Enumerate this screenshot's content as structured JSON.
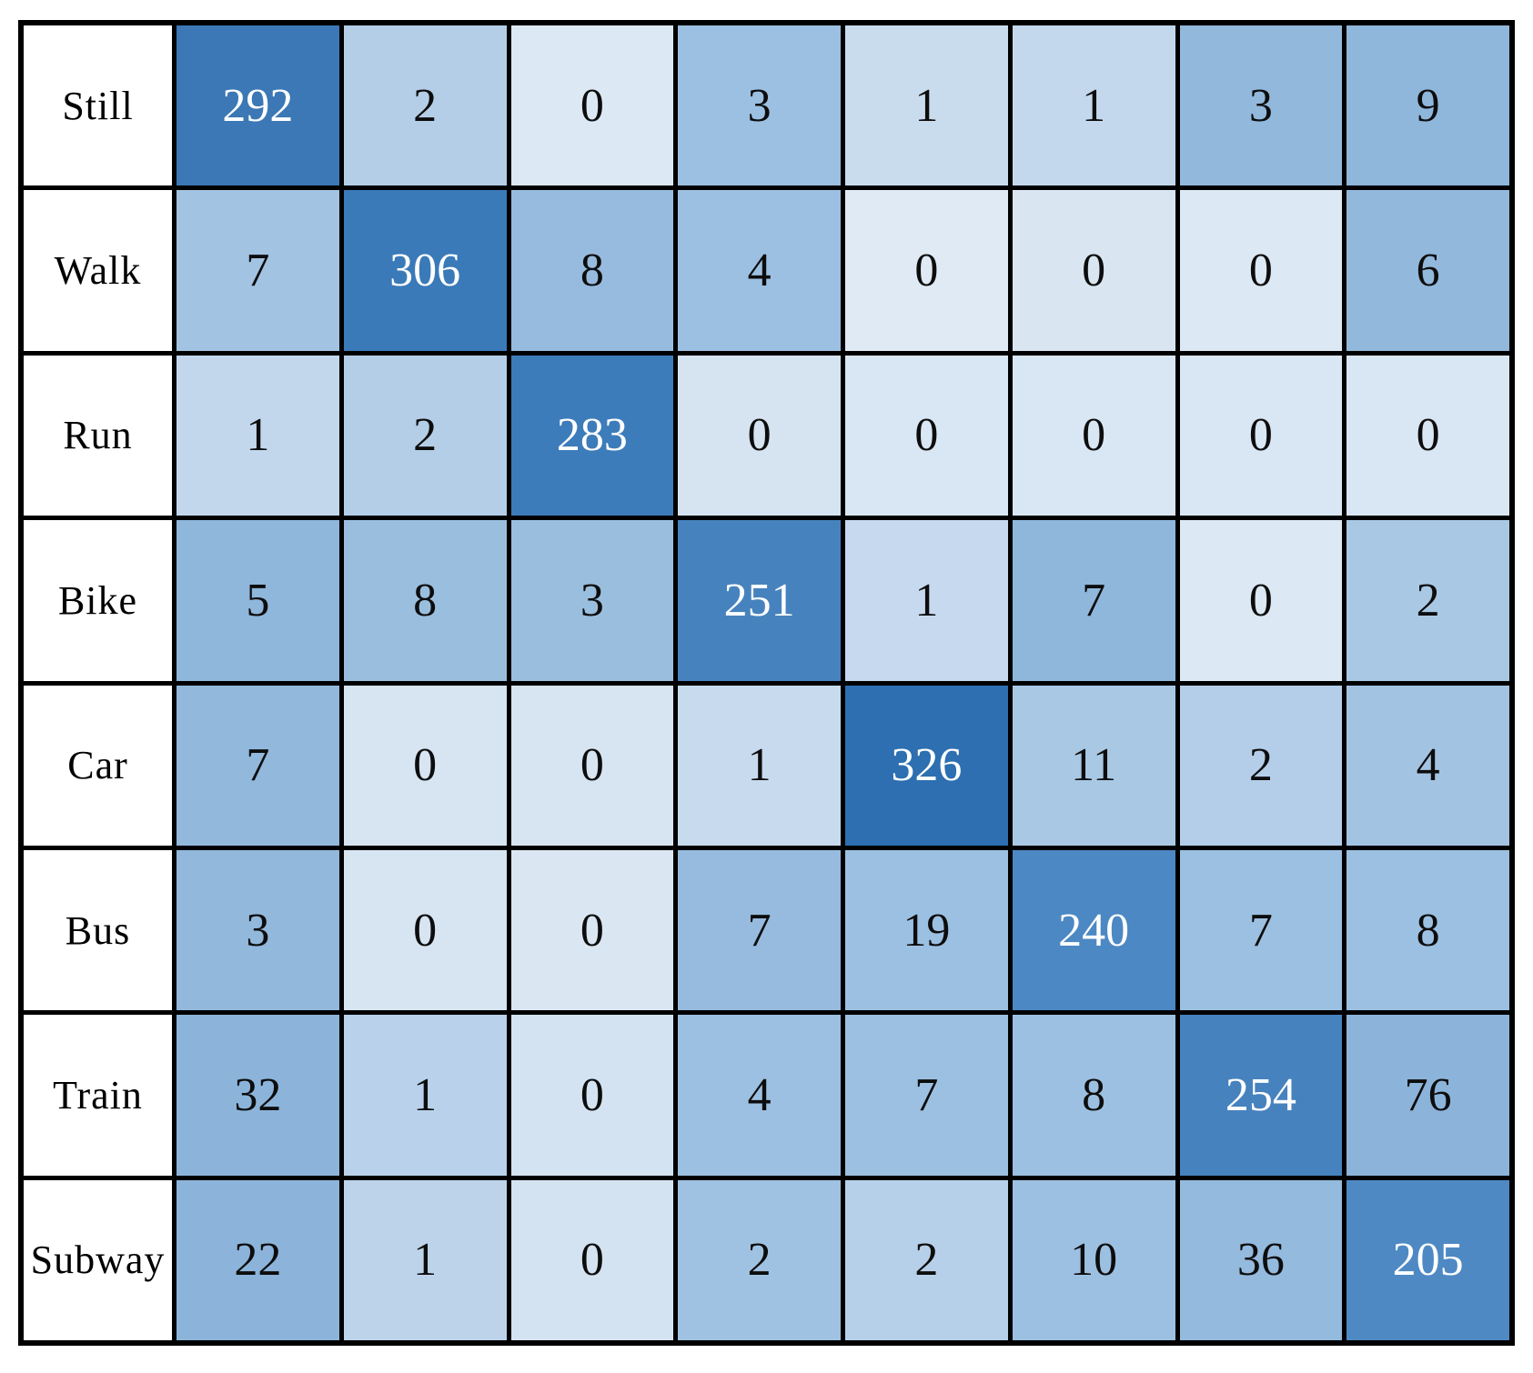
{
  "chart_data": {
    "type": "heatmap",
    "title": "",
    "rows": [
      "Still",
      "Walk",
      "Run",
      "Bike",
      "Car",
      "Bus",
      "Train",
      "Subway"
    ],
    "values": [
      [
        292,
        2,
        0,
        3,
        1,
        1,
        3,
        9
      ],
      [
        7,
        306,
        8,
        4,
        0,
        0,
        0,
        6
      ],
      [
        1,
        2,
        283,
        0,
        0,
        0,
        0,
        0
      ],
      [
        5,
        8,
        3,
        251,
        1,
        7,
        0,
        2
      ],
      [
        7,
        0,
        0,
        1,
        326,
        11,
        2,
        4
      ],
      [
        3,
        0,
        0,
        7,
        19,
        240,
        7,
        8
      ],
      [
        32,
        1,
        0,
        4,
        7,
        8,
        254,
        76
      ],
      [
        22,
        1,
        0,
        2,
        2,
        10,
        36,
        205
      ]
    ],
    "cell_colors": [
      [
        "#3b78b5",
        "#b5cee8",
        "#dce9f4",
        "#9cc0e1",
        "#c9dcee",
        "#c3d8ec",
        "#92b8dc",
        "#8fb6db"
      ],
      [
        "#a2c3e2",
        "#3a7ab8",
        "#96bbde",
        "#9cc0e1",
        "#dfeaf4",
        "#d9e6f2",
        "#dce8f3",
        "#92b8dc"
      ],
      [
        "#c3d7ec",
        "#b4cee7",
        "#3d7cba",
        "#d6e4f1",
        "#d9e6f3",
        "#d9e6f3",
        "#d9e6f3",
        "#d9e6f3"
      ],
      [
        "#8fb6db",
        "#9abede",
        "#9abede",
        "#4683be",
        "#c6d9ee",
        "#8fb7dc",
        "#dce8f3",
        "#a9c8e4"
      ],
      [
        "#92b8dc",
        "#d7e4f1",
        "#d7e4f1",
        "#c7daee",
        "#2d6fb0",
        "#a9c8e4",
        "#b4cee9",
        "#a3c3e3"
      ],
      [
        "#92b8dc",
        "#d7e4f1",
        "#dae6f2",
        "#96bbde",
        "#9cc0e1",
        "#4c88c3",
        "#9cc0e1",
        "#9cc0e1"
      ],
      [
        "#8cb4da",
        "#b9d1ea",
        "#d4e3f1",
        "#9cc0e1",
        "#9cc0e1",
        "#9cc0e1",
        "#4682be",
        "#8cb4da"
      ],
      [
        "#8cb4da",
        "#bdd3ea",
        "#d4e3f1",
        "#a0c2e2",
        "#b7d0e9",
        "#9cc0e1",
        "#94badd",
        "#4e89c4"
      ]
    ],
    "diagonal_text_color": "#ffffff",
    "text_color": "#0d0d0d",
    "grid_color": "#000000",
    "label_column_background": "#ffffff",
    "layout": {
      "legend": "none",
      "grid": "on",
      "n_rows": 8,
      "n_cols": 8
    }
  }
}
